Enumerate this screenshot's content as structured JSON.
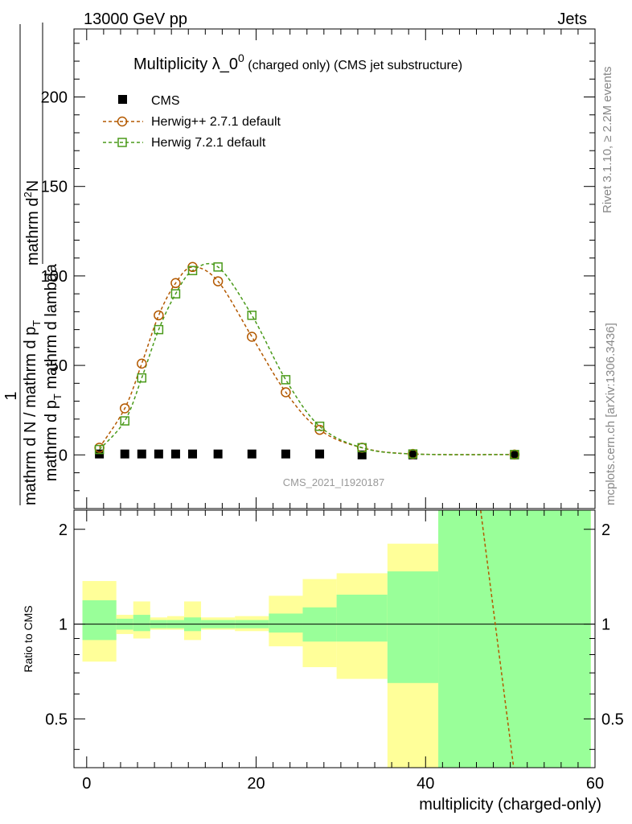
{
  "header": {
    "left": "13000 GeV pp",
    "right": "Jets"
  },
  "side_text": {
    "top": "Rivet 3.1.10, ≥ 2.2M events",
    "bottom": "mcplots.cern.ch [arXiv:1306.3436]"
  },
  "colors": {
    "cms": "#000000",
    "herwigpp": "#b35900",
    "herwig7": "#4a9a1a",
    "band_yellow": "#ffff99",
    "band_green": "#99ff99"
  },
  "chart_data": [
    {
      "type": "line",
      "title_main": "Multiplicity λ_0",
      "title_sup": "0",
      "title_rest": " (charged only) (CMS jet substructure)",
      "ylabel_num_1": "mathrm d",
      "ylabel_num_2": "N",
      "ylabel_num_sup": "2",
      "ylabel_den_1": "mathrm d p",
      "ylabel_den_sub": "T",
      "ylabel_den_2": " mathrm d lambda",
      "ylabel_frac_num": "1",
      "ylabel_frac_den_1": "mathrm d N / mathrm d p",
      "ylabel_frac_den_sub": "T",
      "analysis_tag": "CMS_2021_I1920187",
      "xlim": [
        -1.5,
        60
      ],
      "ylim": [
        -30,
        238
      ],
      "yticks": [
        0,
        50,
        100,
        150,
        200
      ],
      "series": [
        {
          "name": "CMS",
          "marker": "square-filled",
          "x": [
            1.5,
            4.5,
            6.5,
            8.5,
            10.5,
            12.5,
            15.5,
            19.5,
            23.5,
            27.5,
            32.5,
            38.5,
            50.5
          ],
          "y": [
            0.5,
            0.5,
            0.5,
            0.5,
            0.5,
            0.5,
            0.5,
            0.5,
            0.5,
            0.5,
            0.0,
            0.0,
            0.0
          ]
        },
        {
          "name": "Herwig++ 2.7.1 default",
          "marker": "circle-open",
          "x": [
            1.5,
            4.5,
            6.5,
            8.5,
            10.5,
            12.5,
            15.5,
            19.5,
            23.5,
            27.5,
            32.5,
            38.5,
            50.5
          ],
          "y": [
            4,
            26,
            51,
            78,
            96,
            105,
            97,
            66,
            35,
            14,
            4,
            0.5,
            0.2
          ]
        },
        {
          "name": "Herwig 7.2.1 default",
          "marker": "square-open",
          "x": [
            1.5,
            4.5,
            6.5,
            8.5,
            10.5,
            12.5,
            15.5,
            19.5,
            23.5,
            27.5,
            32.5,
            38.5,
            50.5
          ],
          "y": [
            3,
            19,
            43,
            70,
            90,
            103,
            105,
            78,
            42,
            16,
            4,
            0.5,
            0.2
          ]
        }
      ]
    },
    {
      "type": "area",
      "ylabel": "Ratio to CMS",
      "xlabel": "multiplicity (charged-only)",
      "xlim": [
        -1.5,
        60
      ],
      "ylim": [
        0.35,
        2.3
      ],
      "yticks": [
        0.5,
        1,
        2
      ],
      "ytick_labels": [
        "0.5",
        "1",
        "2"
      ],
      "xticks": [
        0,
        20,
        40,
        60
      ],
      "bins": [
        {
          "lo": -0.5,
          "hi": 3.5,
          "y_lo": 0.76,
          "y_hi": 1.37,
          "g_lo": 0.89,
          "g_hi": 1.19
        },
        {
          "lo": 3.5,
          "hi": 5.5,
          "y_lo": 0.93,
          "y_hi": 1.07,
          "g_lo": 0.96,
          "g_hi": 1.04
        },
        {
          "lo": 5.5,
          "hi": 7.5,
          "y_lo": 0.9,
          "y_hi": 1.18,
          "g_lo": 0.95,
          "g_hi": 1.07
        },
        {
          "lo": 7.5,
          "hi": 9.5,
          "y_lo": 0.96,
          "y_hi": 1.05,
          "g_lo": 0.97,
          "g_hi": 1.03
        },
        {
          "lo": 9.5,
          "hi": 11.5,
          "y_lo": 0.96,
          "y_hi": 1.06,
          "g_lo": 0.97,
          "g_hi": 1.03
        },
        {
          "lo": 11.5,
          "hi": 13.5,
          "y_lo": 0.89,
          "y_hi": 1.18,
          "g_lo": 0.95,
          "g_hi": 1.05
        },
        {
          "lo": 13.5,
          "hi": 17.5,
          "y_lo": 0.96,
          "y_hi": 1.05,
          "g_lo": 0.97,
          "g_hi": 1.03
        },
        {
          "lo": 17.5,
          "hi": 21.5,
          "y_lo": 0.95,
          "y_hi": 1.06,
          "g_lo": 0.97,
          "g_hi": 1.03
        },
        {
          "lo": 21.5,
          "hi": 25.5,
          "y_lo": 0.85,
          "y_hi": 1.23,
          "g_lo": 0.94,
          "g_hi": 1.08
        },
        {
          "lo": 25.5,
          "hi": 29.5,
          "y_lo": 0.73,
          "y_hi": 1.39,
          "g_lo": 0.88,
          "g_hi": 1.13
        },
        {
          "lo": 29.5,
          "hi": 35.5,
          "y_lo": 0.67,
          "y_hi": 1.45,
          "g_lo": 0.88,
          "g_hi": 1.24
        },
        {
          "lo": 35.5,
          "hi": 41.5,
          "y_lo": 0.35,
          "y_hi": 1.8,
          "g_lo": 0.65,
          "g_hi": 1.47
        },
        {
          "lo": 41.5,
          "hi": 59.5,
          "y_lo": 0.35,
          "y_hi": 2.3,
          "g_lo": 0.35,
          "g_hi": 2.3
        }
      ],
      "reference": 1,
      "series": [
        {
          "name": "Herwig++ 2.7.1 default",
          "x": [
            46.5,
            50.4
          ],
          "y": [
            2.3,
            0.35
          ]
        }
      ]
    }
  ]
}
